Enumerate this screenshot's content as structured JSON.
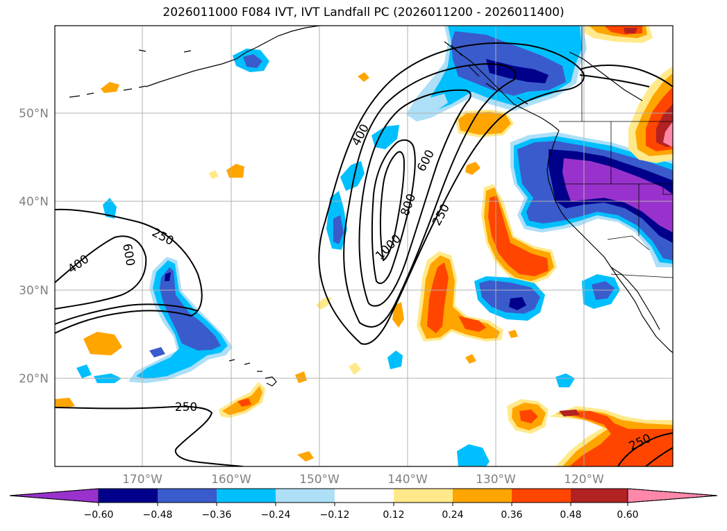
{
  "title": "2026011000 F084 IVT, IVT Landfall PC (2026011200 - 2026011400)",
  "map": {
    "lat_labels": [
      "50°N",
      "40°N",
      "30°N",
      "20°N"
    ],
    "lon_labels": [
      "170°W",
      "160°W",
      "150°W",
      "140°W",
      "130°W",
      "120°W"
    ],
    "contour_levels": [
      "250",
      "400",
      "600",
      "800",
      "1000"
    ],
    "contour_labels": {
      "w250_a": "250",
      "w400": "400",
      "w600": "600",
      "w250_b": "250",
      "c400": "400",
      "c600": "600",
      "c800": "800",
      "c1000": "1000",
      "c250": "250",
      "se250": "250"
    }
  },
  "colorbar": {
    "ticks": [
      "−0.60",
      "−0.48",
      "−0.36",
      "−0.24",
      "−0.12",
      "0.12",
      "0.24",
      "0.36",
      "0.48",
      "0.60"
    ],
    "colors": [
      "#9932CC",
      "#00008B",
      "#3A5BCC",
      "#00BFFF",
      "#ADDFF7",
      "#FFFFFF",
      "#FFE98A",
      "#FFA500",
      "#FF4500",
      "#B22222",
      "#FF88AA"
    ]
  },
  "palette": {
    "purple": "#9932CC",
    "navy": "#00008B",
    "royal": "#3A5BCC",
    "sky": "#00BFFF",
    "lightblue": "#ADDFF7",
    "yellow": "#FFE98A",
    "orange": "#FFA500",
    "redorange": "#FF4500",
    "firebrick": "#B22222",
    "pink": "#FF88AA"
  }
}
